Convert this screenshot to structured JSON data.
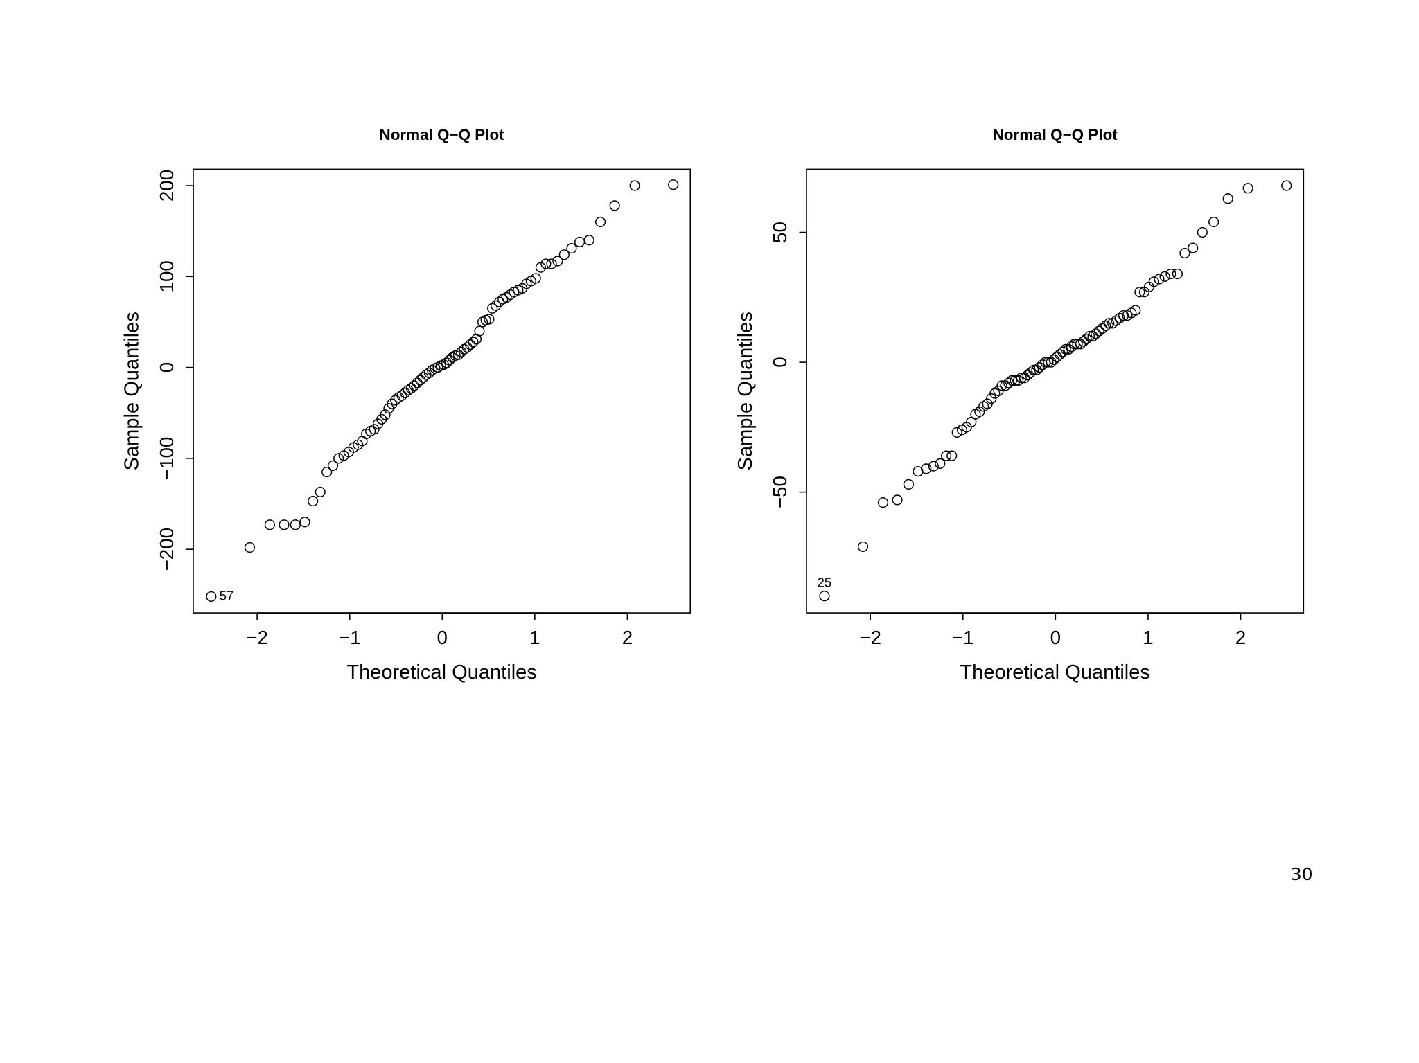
{
  "chart_data": [
    {
      "type": "scatter",
      "title": "Normal Q−Q Plot",
      "x_label": "Theoretical Quantiles",
      "y_label": "Sample Quantiles",
      "annotation": "57",
      "x": [
        -2.496,
        -2.08,
        -1.863,
        -1.709,
        -1.587,
        -1.485,
        -1.397,
        -1.318,
        -1.247,
        -1.181,
        -1.12,
        -1.064,
        -1.01,
        -0.959,
        -0.91,
        -0.864,
        -0.82,
        -0.776,
        -0.735,
        -0.694,
        -0.655,
        -0.616,
        -0.579,
        -0.542,
        -0.506,
        -0.471,
        -0.436,
        -0.402,
        -0.368,
        -0.335,
        -0.302,
        -0.27,
        -0.237,
        -0.205,
        -0.174,
        -0.142,
        -0.11,
        -0.078,
        -0.047,
        -0.016,
        0.016,
        0.047,
        0.078,
        0.11,
        0.142,
        0.174,
        0.205,
        0.237,
        0.27,
        0.302,
        0.335,
        0.368,
        0.402,
        0.436,
        0.471,
        0.506,
        0.542,
        0.579,
        0.616,
        0.655,
        0.694,
        0.735,
        0.776,
        0.82,
        0.864,
        0.91,
        0.959,
        1.01,
        1.064,
        1.12,
        1.181,
        1.247,
        1.318,
        1.397,
        1.485,
        1.587,
        1.709,
        1.863,
        2.08,
        2.496
      ],
      "values": [
        -252,
        -198,
        -173,
        -173,
        -173,
        -170,
        -147,
        -137,
        -115,
        -108,
        -100,
        -97,
        -93,
        -88,
        -85,
        -81,
        -73,
        -70,
        -68,
        -62,
        -57,
        -52,
        -45,
        -40,
        -36,
        -33,
        -31,
        -28,
        -25,
        -23,
        -20,
        -17,
        -14,
        -11,
        -8,
        -6,
        -3,
        -1,
        0,
        2,
        3,
        5,
        8,
        11,
        13,
        14,
        17,
        20,
        22,
        25,
        28,
        31,
        40,
        50,
        52,
        53,
        65,
        68,
        72,
        75,
        77,
        80,
        83,
        85,
        87,
        92,
        95,
        98,
        110,
        114,
        114,
        117,
        124,
        131,
        138,
        140,
        160,
        178,
        200,
        201
      ],
      "xlim": [
        -2.69,
        2.68
      ],
      "ylim": [
        -270,
        218
      ],
      "xticks": [
        {
          "value": -2,
          "label": "−2"
        },
        {
          "value": -1,
          "label": "−1"
        },
        0,
        1,
        2
      ],
      "yticks": [
        {
          "value": -200,
          "label": "−200"
        },
        {
          "value": -100,
          "label": "−100"
        },
        0,
        100,
        200
      ]
    },
    {
      "type": "scatter",
      "title": "Normal Q−Q Plot",
      "x_label": "Theoretical Quantiles",
      "y_label": "Sample Quantiles",
      "annotation": "25",
      "x": [
        -2.496,
        -2.08,
        -1.863,
        -1.709,
        -1.587,
        -1.485,
        -1.397,
        -1.318,
        -1.247,
        -1.181,
        -1.12,
        -1.064,
        -1.01,
        -0.959,
        -0.91,
        -0.864,
        -0.82,
        -0.776,
        -0.735,
        -0.694,
        -0.655,
        -0.616,
        -0.579,
        -0.542,
        -0.506,
        -0.471,
        -0.436,
        -0.402,
        -0.368,
        -0.335,
        -0.302,
        -0.27,
        -0.237,
        -0.205,
        -0.174,
        -0.142,
        -0.11,
        -0.078,
        -0.047,
        -0.016,
        0.016,
        0.047,
        0.078,
        0.11,
        0.142,
        0.174,
        0.205,
        0.237,
        0.27,
        0.302,
        0.335,
        0.368,
        0.402,
        0.436,
        0.471,
        0.506,
        0.542,
        0.579,
        0.616,
        0.655,
        0.694,
        0.735,
        0.776,
        0.82,
        0.864,
        0.91,
        0.959,
        1.01,
        1.064,
        1.12,
        1.181,
        1.247,
        1.318,
        1.397,
        1.485,
        1.587,
        1.709,
        1.863,
        2.08,
        2.496
      ],
      "values": [
        -90,
        -71,
        -54,
        -53,
        -47,
        -42,
        -41,
        -40,
        -39,
        -36,
        -36,
        -27,
        -26,
        -25,
        -23,
        -20,
        -19,
        -17,
        -16,
        -14,
        -12,
        -11,
        -9,
        -9,
        -8,
        -7,
        -7,
        -7,
        -6,
        -6,
        -5,
        -4,
        -3,
        -3,
        -2,
        -1,
        0,
        0,
        0,
        1,
        2,
        3,
        4,
        5,
        5,
        6,
        7,
        7,
        7,
        8,
        9,
        10,
        10,
        11,
        12,
        13,
        14,
        15,
        15,
        16,
        17,
        18,
        18,
        19,
        20,
        27,
        27,
        29,
        31,
        32,
        33,
        34,
        34,
        42,
        44,
        50,
        54,
        63,
        67,
        68
      ],
      "xlim": [
        -2.69,
        2.68
      ],
      "ylim": [
        -96.5,
        74.3
      ],
      "xticks": [
        {
          "value": -2,
          "label": "−2"
        },
        {
          "value": -1,
          "label": "−1"
        },
        0,
        1,
        2
      ],
      "yticks": [
        {
          "value": -50,
          "label": "−50"
        },
        0,
        50
      ]
    }
  ],
  "page_number": "30"
}
